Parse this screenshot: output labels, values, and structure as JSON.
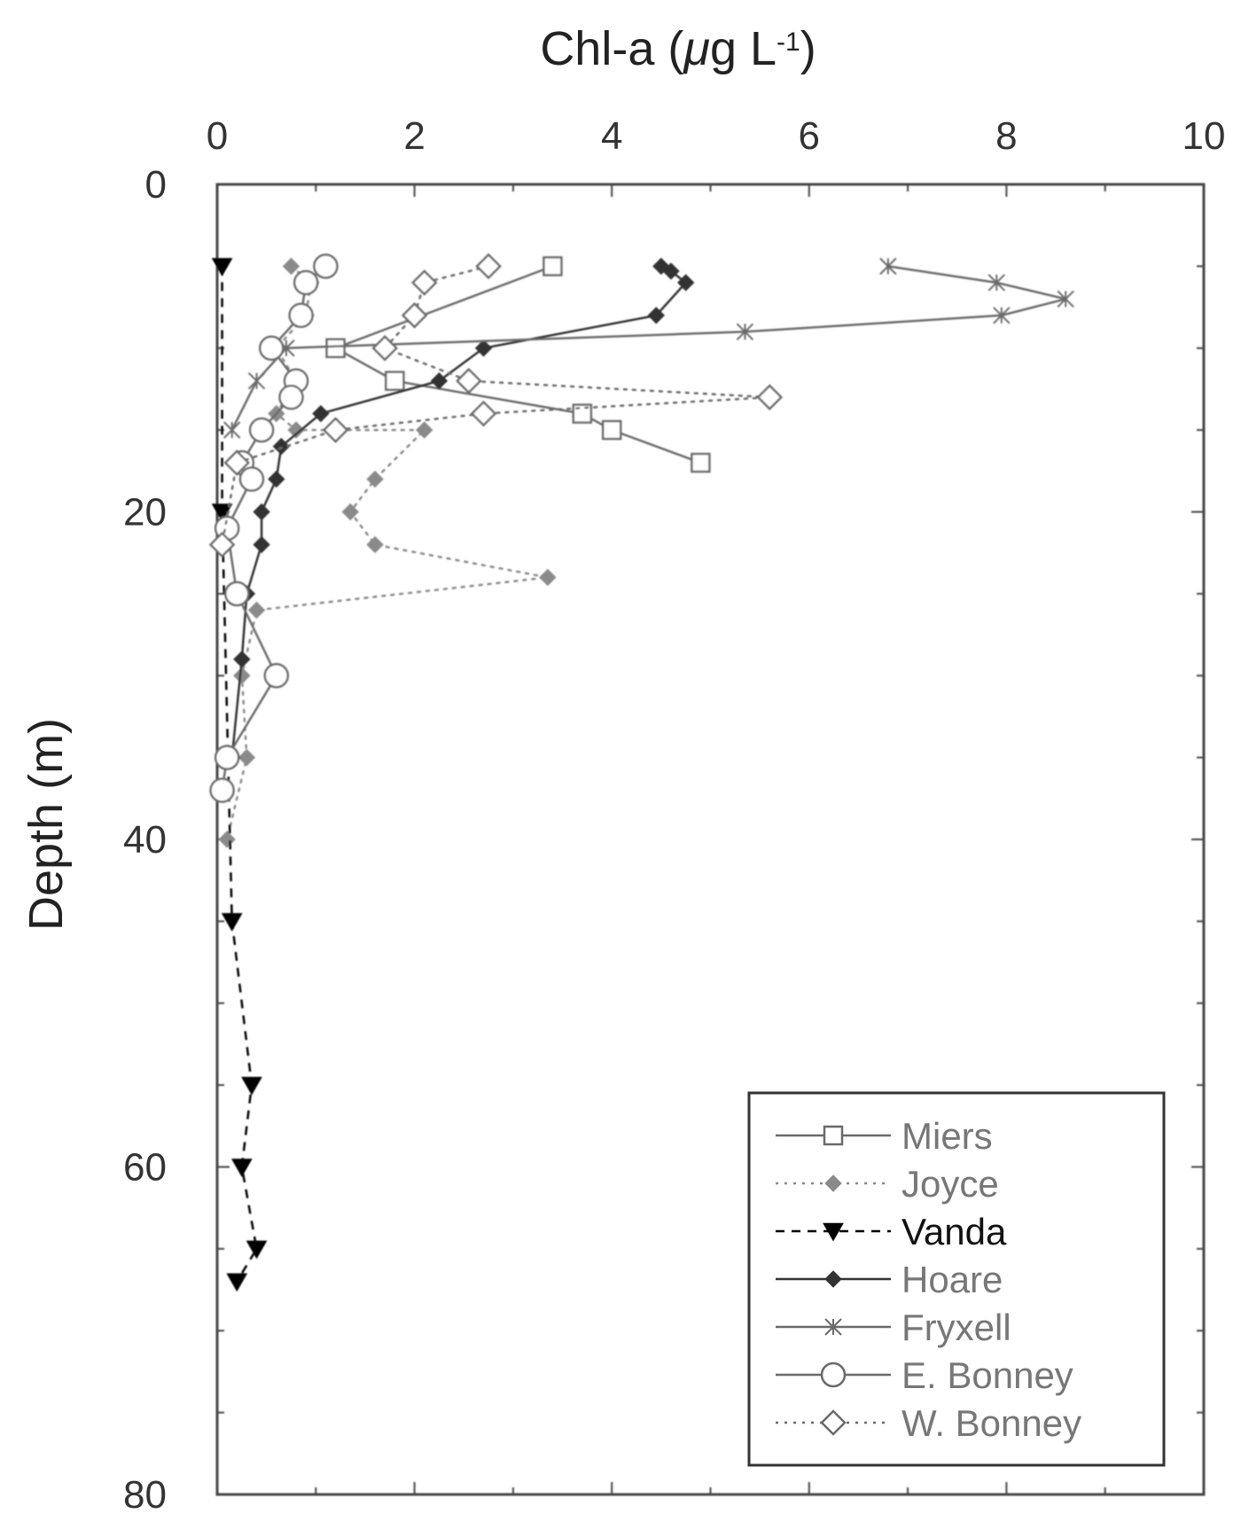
{
  "chart_data": {
    "type": "line",
    "xlabel_main": "Chl-a (",
    "xlabel_mu": "μ",
    "xlabel_unit": "g L",
    "xlabel_sup": "-1",
    "xlabel_close": ")",
    "ylabel": "Depth (m)",
    "xlim": [
      0,
      10
    ],
    "ylim": [
      0,
      80
    ],
    "y_inverted": true,
    "x_axis_position": "top",
    "x_ticks": [
      0,
      2,
      4,
      6,
      8,
      10
    ],
    "y_ticks": [
      0,
      20,
      40,
      60,
      80
    ],
    "grid": false,
    "legend_position": "bottom-right",
    "series": [
      {
        "name": "Miers",
        "marker": "square",
        "line": "solid",
        "color": "#6a6a6a",
        "points": [
          [
            3.4,
            5
          ],
          [
            1.2,
            10
          ],
          [
            1.8,
            12
          ],
          [
            3.7,
            14
          ],
          [
            4.0,
            15
          ],
          [
            4.9,
            17
          ]
        ]
      },
      {
        "name": "Joyce",
        "marker": "diamond-filled",
        "line": "dotted",
        "color": "#8a8a8a",
        "points": [
          [
            0.75,
            5
          ],
          [
            0.95,
            6
          ],
          [
            0.9,
            8
          ],
          [
            0.6,
            10
          ],
          [
            0.8,
            12
          ],
          [
            0.6,
            14
          ],
          [
            0.8,
            15
          ],
          [
            2.1,
            15
          ],
          [
            1.6,
            18
          ],
          [
            1.35,
            20
          ],
          [
            1.6,
            22
          ],
          [
            3.35,
            24
          ],
          [
            0.4,
            26
          ],
          [
            0.25,
            30
          ],
          [
            0.3,
            35
          ],
          [
            0.1,
            40
          ]
        ]
      },
      {
        "name": "Vanda",
        "marker": "triangle-down",
        "line": "dashed",
        "color": "#000000",
        "points": [
          [
            0.05,
            5
          ],
          [
            0.05,
            20
          ],
          [
            0.15,
            45
          ],
          [
            0.35,
            55
          ],
          [
            0.25,
            60
          ],
          [
            0.4,
            65
          ],
          [
            0.2,
            67
          ]
        ]
      },
      {
        "name": "Hoare",
        "marker": "diamond-filled",
        "line": "solid",
        "color": "#333333",
        "points": [
          [
            4.5,
            5
          ],
          [
            4.6,
            5.3
          ],
          [
            4.75,
            6
          ],
          [
            4.45,
            8
          ],
          [
            2.7,
            10
          ],
          [
            2.25,
            12
          ],
          [
            1.05,
            14
          ],
          [
            0.65,
            16
          ],
          [
            0.6,
            18
          ],
          [
            0.45,
            20
          ],
          [
            0.45,
            22
          ],
          [
            0.3,
            25
          ],
          [
            0.25,
            29
          ],
          [
            0.15,
            35
          ]
        ]
      },
      {
        "name": "Fryxell",
        "marker": "cross",
        "line": "solid",
        "color": "#6a6a6a",
        "points": [
          [
            6.8,
            5
          ],
          [
            7.9,
            6
          ],
          [
            8.6,
            7
          ],
          [
            7.95,
            8
          ],
          [
            5.35,
            9
          ],
          [
            0.7,
            10
          ],
          [
            0.4,
            12
          ],
          [
            0.15,
            15
          ]
        ]
      },
      {
        "name": "E. Bonney",
        "marker": "circle",
        "line": "solid",
        "color": "#6a6a6a",
        "points": [
          [
            1.1,
            5
          ],
          [
            0.9,
            6
          ],
          [
            0.85,
            8
          ],
          [
            0.55,
            10
          ],
          [
            0.8,
            12
          ],
          [
            0.75,
            13
          ],
          [
            0.45,
            15
          ],
          [
            0.25,
            17
          ],
          [
            0.35,
            18
          ],
          [
            0.1,
            21
          ],
          [
            0.2,
            25
          ],
          [
            0.6,
            30
          ],
          [
            0.1,
            35
          ],
          [
            0.05,
            37
          ]
        ]
      },
      {
        "name": "W. Bonney",
        "marker": "diamond-open",
        "line": "dotted",
        "color": "#6a6a6a",
        "points": [
          [
            2.75,
            5
          ],
          [
            2.1,
            6
          ],
          [
            2.0,
            8
          ],
          [
            1.7,
            10
          ],
          [
            2.55,
            12
          ],
          [
            5.6,
            13
          ],
          [
            2.7,
            14
          ],
          [
            1.2,
            15
          ],
          [
            0.2,
            17
          ],
          [
            0.05,
            22
          ]
        ]
      }
    ]
  }
}
